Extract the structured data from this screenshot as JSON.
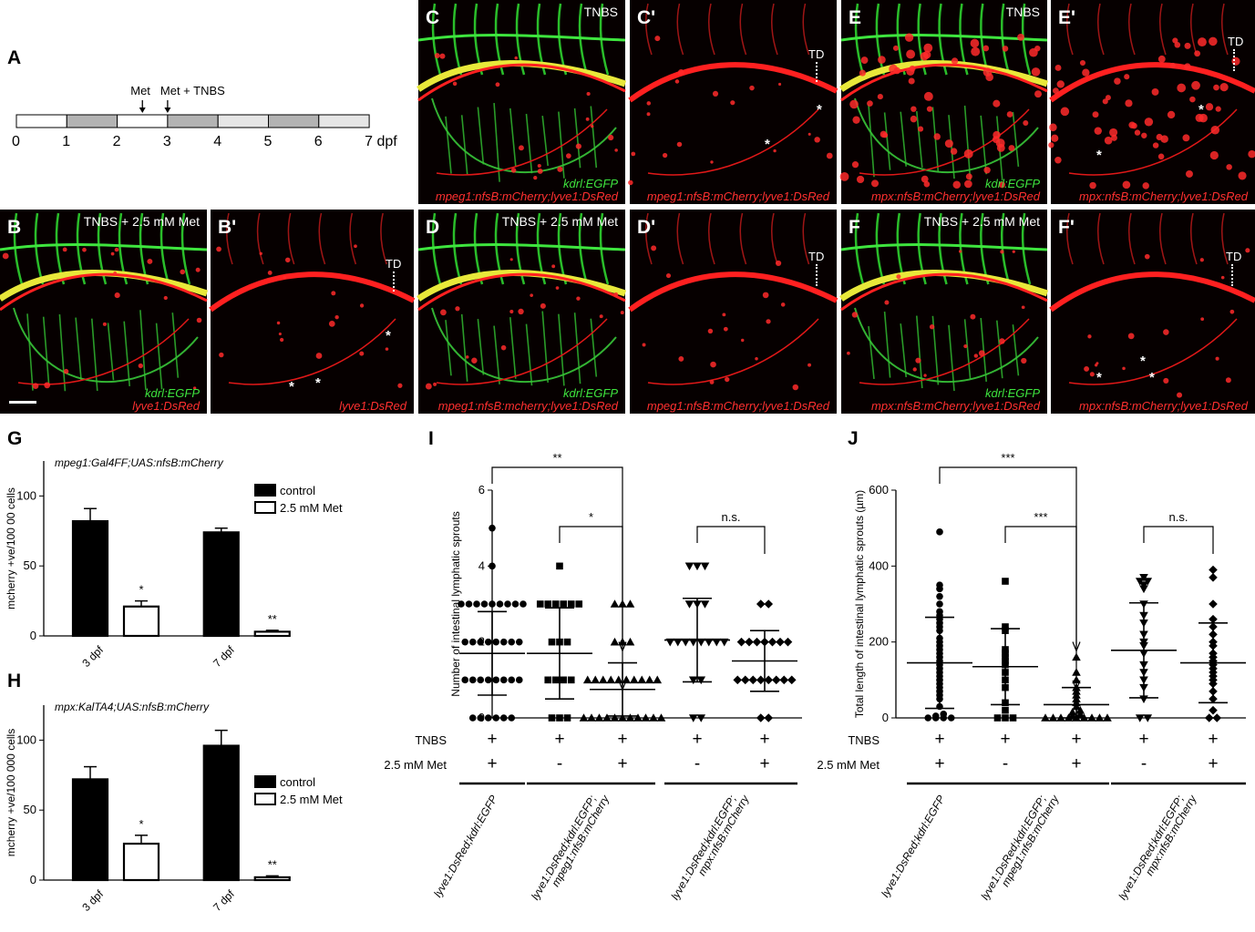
{
  "panel_labels": {
    "A": "A",
    "B": "B",
    "B_prime": "B'",
    "C": "C",
    "C_prime": "C'",
    "D": "D",
    "D_prime": "D'",
    "E": "E",
    "E_prime": "E'",
    "F": "F",
    "F_prime": "F'",
    "G": "G",
    "H": "H",
    "I": "I",
    "J": "J"
  },
  "timeline": {
    "ticks": [
      "0",
      "1",
      "2",
      "3",
      "4",
      "5",
      "6",
      "7 dpf"
    ],
    "segments": [
      "white",
      "gray",
      "white",
      "gray",
      "lightgray",
      "gray",
      "lightgray"
    ],
    "arrow_met": "Met",
    "arrow_met_tnbs": "Met + TNBS"
  },
  "micrographs": {
    "B": {
      "condition": "TNBS + 2.5 mM Met",
      "green_label": "kdrl:EGFP",
      "red_label": "lyve1:DsRed"
    },
    "B_prime": {
      "red_label": "lyve1:DsRed",
      "td": "TD",
      "stars": [
        "*",
        "*",
        "*"
      ]
    },
    "C": {
      "condition": "TNBS",
      "green_label": "kdrl:EGFP",
      "red_label": "mpeg1:nfsB:mCherry;lyve1:DsRed"
    },
    "C_prime": {
      "red_label": "mpeg1:nfsB:mCherry;lyve1:DsRed",
      "td": "TD",
      "stars": [
        "*",
        "*"
      ]
    },
    "D": {
      "condition": "TNBS + 2.5 mM Met",
      "green_label": "kdrl:EGFP",
      "red_label": "mpeg1:nfsB:mcherry;lyve1:DsRed"
    },
    "D_prime": {
      "red_label": "mpeg1:nfsB:mCherry;lyve1:DsRed",
      "td": "TD"
    },
    "E": {
      "condition": "TNBS",
      "green_label": "kdrl:EGFP",
      "red_label": "mpx:nfsB:mCherry;lyve1:DsRed"
    },
    "E_prime": {
      "red_label": "mpx:nfsB:mCherry;lyve1:DsRed",
      "td": "TD",
      "stars": [
        "*",
        "*"
      ]
    },
    "F": {
      "condition": "TNBS + 2.5 mM Met",
      "green_label": "kdrl:EGFP",
      "red_label": "mpx:nfsB:mCherry;lyve1:DsRed"
    },
    "F_prime": {
      "red_label": "mpx:nfsB:mCherry;lyve1:DsRed",
      "td": "TD",
      "stars": [
        "*",
        "*",
        "*"
      ]
    }
  },
  "colors": {
    "green": "#3ee53e",
    "red": "#ff2020",
    "yellow": "#e8e83a",
    "bar_control": "#000000",
    "bar_met": "#ffffff"
  },
  "chart_data": [
    {
      "id": "G",
      "type": "bar",
      "title": "mpeg1:Gal4FF;UAS:nfsB:mCherry",
      "ylabel": "mcherry +ve/100 00 cells",
      "ylim": [
        0,
        125
      ],
      "yticks": [
        "0",
        "50",
        "100"
      ],
      "categories": [
        "3 dpf",
        "7 dpf"
      ],
      "series": [
        {
          "name": "control",
          "values": [
            82,
            74
          ],
          "errors": [
            9,
            3
          ]
        },
        {
          "name": "2.5 mM Met",
          "values": [
            21,
            3
          ],
          "errors": [
            4,
            1
          ]
        }
      ],
      "significance": [
        "*",
        "**"
      ],
      "legend": "right"
    },
    {
      "id": "H",
      "type": "bar",
      "title": "mpx:KalTA4;UAS:nfsB:mCherry",
      "ylabel": "mcherry +ve/100 000 cells",
      "ylim": [
        0,
        125
      ],
      "yticks": [
        "0",
        "50",
        "100"
      ],
      "categories": [
        "3 dpf",
        "7 dpf"
      ],
      "series": [
        {
          "name": "control",
          "values": [
            72,
            96
          ],
          "errors": [
            9,
            11
          ]
        },
        {
          "name": "2.5 mM Met",
          "values": [
            26,
            2
          ],
          "errors": [
            6,
            1
          ]
        }
      ],
      "significance": [
        "*",
        "**"
      ],
      "legend": "right"
    },
    {
      "id": "I",
      "type": "scatter",
      "ylabel": "Number of intestinal lymphatic sprouts",
      "ylim": [
        0,
        6
      ],
      "yticks": [
        "0",
        "2",
        "4",
        "6"
      ],
      "groups": [
        {
          "marker": "circle",
          "mean": 1.7,
          "sd": 1.1,
          "points": [
            0,
            0,
            0,
            0,
            0,
            0,
            1,
            1,
            1,
            1,
            1,
            1,
            1,
            1,
            2,
            2,
            2,
            2,
            2,
            2,
            2,
            2,
            3,
            3,
            3,
            3,
            3,
            3,
            3,
            3,
            3,
            4,
            5
          ]
        },
        {
          "marker": "square",
          "mean": 1.7,
          "sd": 1.2,
          "points": [
            0,
            0,
            0,
            1,
            1,
            1,
            1,
            2,
            2,
            2,
            3,
            3,
            3,
            3,
            3,
            3,
            4
          ]
        },
        {
          "marker": "triangle",
          "mean": 0.75,
          "sd": 0.7,
          "points": [
            0,
            0,
            0,
            0,
            0,
            0,
            0,
            0,
            0,
            0,
            0,
            1,
            1,
            1,
            1,
            1,
            1,
            1,
            1,
            1,
            1,
            2,
            2,
            2,
            3,
            3,
            3
          ]
        },
        {
          "marker": "triangle-down",
          "mean": 2.05,
          "sd": 1.1,
          "points": [
            0,
            0,
            1,
            1,
            2,
            2,
            2,
            2,
            2,
            2,
            2,
            2,
            3,
            3,
            3,
            4,
            4,
            4
          ]
        },
        {
          "marker": "diamond",
          "mean": 1.5,
          "sd": 0.8,
          "points": [
            0,
            0,
            1,
            1,
            1,
            1,
            1,
            1,
            1,
            1,
            2,
            2,
            2,
            2,
            2,
            2,
            2,
            3,
            3
          ]
        }
      ],
      "brackets": [
        {
          "from": 0,
          "to": 2,
          "label": "**"
        },
        {
          "from": 1,
          "to": 2,
          "label": "*"
        },
        {
          "from": 3,
          "to": 4,
          "label": "n.s."
        }
      ],
      "row_labels": [
        "TNBS",
        "2.5 mM Met"
      ],
      "tnbs": [
        "+",
        "+",
        "+",
        "+",
        "+"
      ],
      "met": [
        "+",
        "-",
        "+",
        "-",
        "+"
      ],
      "genotypes": [
        {
          "line1": "lyve1:DsRed;kdrl:EGFP",
          "line2": ""
        },
        {
          "line1": "lyve1:DsRed;kdrl:EGFP;",
          "line2": "mpeg1:nfsB:mCherry"
        },
        {
          "line1": "lyve1:DsRed;kdrl:EGFP;",
          "line2": "mpx:nfsB:mCherry"
        }
      ]
    },
    {
      "id": "J",
      "type": "scatter",
      "ylabel": "Total length of intestinal lymphatic sprouts (µm)",
      "ylim": [
        0,
        600
      ],
      "yticks": [
        "0",
        "200",
        "400",
        "600"
      ],
      "groups": [
        {
          "marker": "circle",
          "mean": 145,
          "sd": 120,
          "points": [
            0,
            0,
            0,
            0,
            5,
            10,
            30,
            50,
            60,
            70,
            80,
            90,
            100,
            110,
            120,
            130,
            140,
            150,
            160,
            170,
            180,
            190,
            200,
            210,
            230,
            240,
            250,
            260,
            270,
            280,
            300,
            320,
            340,
            350,
            490
          ]
        },
        {
          "marker": "square",
          "mean": 135,
          "sd": 100,
          "points": [
            0,
            0,
            0,
            20,
            40,
            80,
            100,
            120,
            140,
            150,
            160,
            170,
            180,
            230,
            240,
            360
          ]
        },
        {
          "marker": "triangle",
          "mean": 35,
          "sd": 45,
          "points": [
            0,
            0,
            0,
            0,
            0,
            0,
            0,
            0,
            0,
            5,
            10,
            15,
            20,
            30,
            40,
            50,
            60,
            70,
            80,
            100,
            120,
            160
          ]
        },
        {
          "marker": "triangle-down",
          "mean": 178,
          "sd": 125,
          "points": [
            0,
            0,
            50,
            80,
            100,
            120,
            140,
            170,
            190,
            200,
            220,
            250,
            270,
            300,
            340,
            350,
            360,
            360,
            370
          ]
        },
        {
          "marker": "diamond",
          "mean": 145,
          "sd": 105,
          "points": [
            0,
            0,
            20,
            50,
            70,
            90,
            100,
            110,
            120,
            130,
            140,
            150,
            160,
            170,
            190,
            200,
            220,
            240,
            260,
            300,
            370,
            390
          ]
        }
      ],
      "brackets": [
        {
          "from": 0,
          "to": 2,
          "label": "***"
        },
        {
          "from": 1,
          "to": 2,
          "label": "***"
        },
        {
          "from": 3,
          "to": 4,
          "label": "n.s."
        }
      ],
      "row_labels": [
        "TNBS",
        "2.5 mM Met"
      ],
      "tnbs": [
        "+",
        "+",
        "+",
        "+",
        "+"
      ],
      "met": [
        "+",
        "-",
        "+",
        "-",
        "+"
      ],
      "genotypes": [
        {
          "line1": "lyve1:DsRed;kdrl:EGFP",
          "line2": ""
        },
        {
          "line1": "lyve1:DsRed;kdrl:EGFP;",
          "line2": "mpeg1:nfsB:mCherry"
        },
        {
          "line1": "lyve1:DsRed;kdrl:EGFP;",
          "line2": "mpx:nfsB:mCherry"
        }
      ]
    }
  ]
}
